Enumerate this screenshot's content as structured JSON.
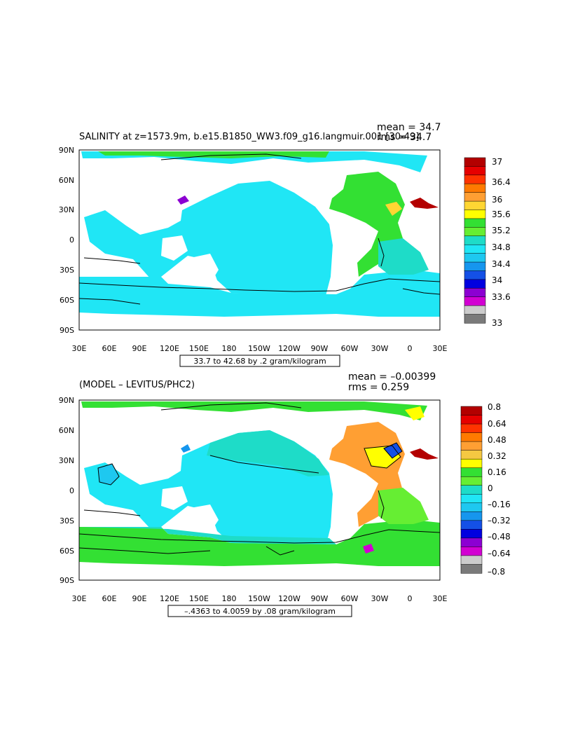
{
  "panels": [
    {
      "title": "SALINITY at z=1573.9m, b.e15.B1850_WW3.f09_g16.langmuir.001 [30-49]",
      "mean": "mean = 34.7",
      "rms": "rms = 34.7",
      "range": "33.7 to 42.68 by .2 gram/kilogram",
      "colorbar": {
        "labels": [
          "37",
          "36.4",
          "36",
          "35.6",
          "35.2",
          "34.8",
          "34.4",
          "34",
          "33.6",
          "33"
        ],
        "colors": [
          "#b30000",
          "#e60000",
          "#ff3300",
          "#ff7a00",
          "#ff9f33",
          "#ffd633",
          "#ffff00",
          "#33e033",
          "#66ee33",
          "#1edcc8",
          "#20e6f5",
          "#1ec8f0",
          "#1696ee",
          "#1450e6",
          "#0000e0",
          "#8c00d2",
          "#d200d2",
          "#cccccc",
          "#7a7a7a"
        ]
      }
    },
    {
      "title": "(MODEL – LEVITUS/PHC2)",
      "mean": "mean = –0.00399",
      "rms": "rms = 0.259",
      "range": "–.4363 to 4.0059 by .08 gram/kilogram",
      "colorbar": {
        "labels": [
          "0.8",
          "0.64",
          "0.48",
          "0.32",
          "0.16",
          "0",
          "–0.16",
          "–0.32",
          "–0.48",
          "–0.64",
          "–0.8"
        ],
        "colors": [
          "#b30000",
          "#e60000",
          "#ff3300",
          "#ff7a00",
          "#ff9f33",
          "#f5c842",
          "#ffff00",
          "#33e033",
          "#66ee33",
          "#1edcc8",
          "#20e6f5",
          "#1ec8f0",
          "#1696ee",
          "#1450e6",
          "#0000e0",
          "#8c00d2",
          "#d200d2",
          "#cccccc",
          "#7a7a7a"
        ]
      }
    }
  ],
  "axes": {
    "lat_labels": [
      "90N",
      "60N",
      "30N",
      "0",
      "30S",
      "60S",
      "90S"
    ],
    "lon_labels": [
      "30E",
      "60E",
      "90E",
      "120E",
      "150E",
      "180",
      "150W",
      "120W",
      "90W",
      "60W",
      "30W",
      "0",
      "30E"
    ]
  }
}
